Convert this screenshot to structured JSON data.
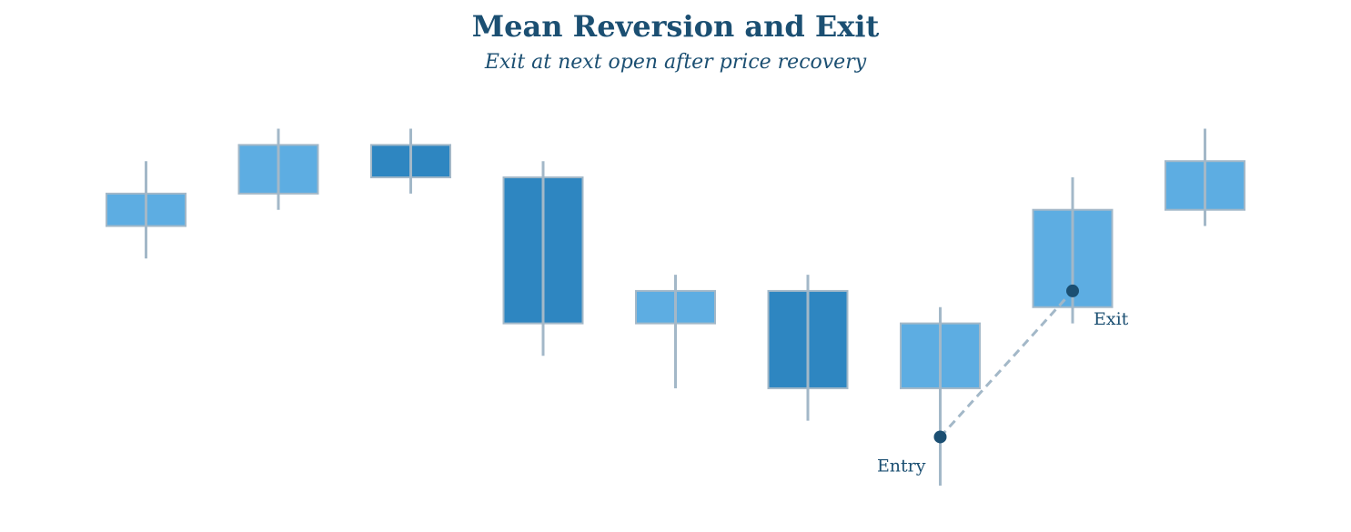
{
  "chart_data": {
    "type": "candlestick",
    "title": "Mean Reversion and Exit",
    "subtitle": "Exit at next open after price recovery",
    "xlabel": "",
    "ylabel": "",
    "ylim": [
      89.5,
      102
    ],
    "grid": false,
    "legend": "none",
    "candles": [
      {
        "index": 0,
        "open": 97.5,
        "close": 98.5,
        "high": 99.5,
        "low": 96.5,
        "direction": "up"
      },
      {
        "index": 1,
        "open": 98.5,
        "close": 100.0,
        "high": 100.5,
        "low": 98.0,
        "direction": "up"
      },
      {
        "index": 2,
        "open": 100.0,
        "close": 99.0,
        "high": 100.5,
        "low": 98.5,
        "direction": "down"
      },
      {
        "index": 3,
        "open": 99.0,
        "close": 94.5,
        "high": 99.5,
        "low": 93.5,
        "direction": "down"
      },
      {
        "index": 4,
        "open": 94.5,
        "close": 95.5,
        "high": 96.0,
        "low": 92.5,
        "direction": "up"
      },
      {
        "index": 5,
        "open": 95.5,
        "close": 92.5,
        "high": 96.0,
        "low": 91.5,
        "direction": "down"
      },
      {
        "index": 6,
        "open": 92.5,
        "close": 94.5,
        "high": 95.0,
        "low": 89.5,
        "direction": "up"
      },
      {
        "index": 7,
        "open": 95.0,
        "close": 98.0,
        "high": 99.0,
        "low": 94.5,
        "direction": "up"
      },
      {
        "index": 8,
        "open": 98.0,
        "close": 99.5,
        "high": 100.5,
        "low": 97.5,
        "direction": "up"
      }
    ],
    "annotations": [
      {
        "label": "Entry",
        "candle_index": 6,
        "price": 91.0
      },
      {
        "label": "Exit",
        "candle_index": 7,
        "price": 95.5
      }
    ],
    "colors": {
      "up": "#5dade2",
      "down": "#2e86c1",
      "wick": "#a3b8c8",
      "marker": "#1b4f72",
      "connector": "#a3b8c8",
      "text": "#1b4f72"
    }
  }
}
